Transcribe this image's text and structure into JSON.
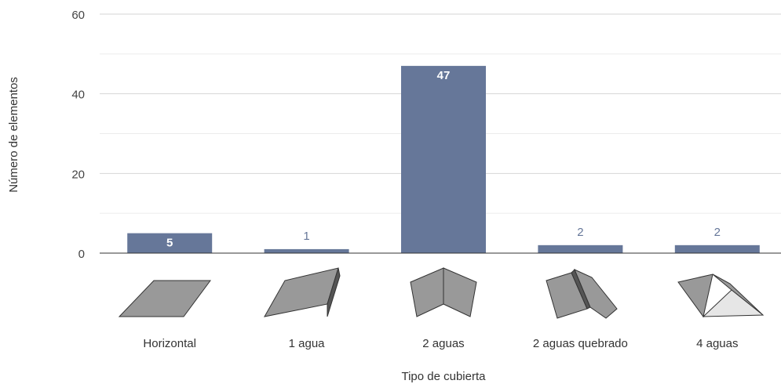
{
  "chart_data": {
    "type": "bar",
    "categories": [
      "Horizontal",
      "1 agua",
      "2 aguas",
      "2 aguas quebrado",
      "4 aguas"
    ],
    "values": [
      5,
      1,
      47,
      2,
      2
    ],
    "data_labels": [
      "5",
      "1",
      "47",
      "2",
      "2"
    ],
    "xlabel": "Tipo de cubierta",
    "ylabel": "Número de elementos",
    "ylim": [
      0,
      60
    ],
    "yticks": [
      0,
      20,
      40,
      60
    ],
    "minor_grid_step": 10,
    "grid": true,
    "legend": "none",
    "bar_color": "#667799",
    "label_inside_color": "#ffffff",
    "label_outside_color": "#667799",
    "roof_icons": [
      "flat-roof-icon",
      "shed-roof-icon",
      "gable-roof-icon",
      "broken-gable-roof-icon",
      "hip-roof-icon"
    ],
    "icon_colors": {
      "face": "#999999",
      "dark": "#555555",
      "light": "#e6e6e6",
      "outline": "#333333"
    }
  }
}
